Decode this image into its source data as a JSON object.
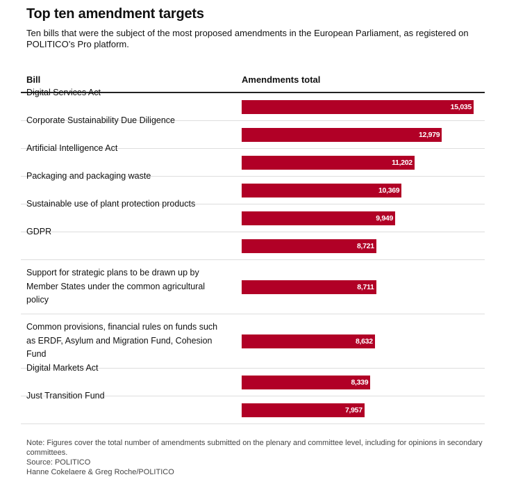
{
  "title": "Top ten amendment targets",
  "subtitle": "Ten bills that were the subject of the most proposed amendments in the European Parliament, as registered on POLITICO’s Pro platform.",
  "columns": {
    "bill": "Bill",
    "amendments": "Amendments total"
  },
  "colors": {
    "bar": "#b10026",
    "bar_label": "#ffffff"
  },
  "chart_data": {
    "type": "bar",
    "orientation": "horizontal",
    "title": "Top ten amendment targets",
    "xlabel": "Amendments total",
    "ylabel": "Bill",
    "grid": false,
    "xlim": [
      0,
      15035
    ],
    "categories": [
      "Digital Services Act",
      "Corporate Sustainability Due Diligence",
      "Artificial Intelligence Act",
      "Packaging and packaging waste",
      "Sustainable use of plant protection products",
      "GDPR",
      "Support for strategic plans to be drawn up by Member States under the common agricultural policy",
      "Common provisions, financial rules on funds such as ERDF, Asylum and Migration Fund, Cohesion Fund",
      "Digital Markets Act",
      "Just Transition Fund"
    ],
    "values": [
      15035,
      12979,
      11202,
      10369,
      9949,
      8721,
      8711,
      8632,
      8339,
      7957
    ],
    "value_labels": [
      "15,035",
      "12,979",
      "11,202",
      "10,369",
      "9,949",
      "8,721",
      "8,711",
      "8,632",
      "8,339",
      "7,957"
    ]
  },
  "footer": {
    "note": "Note: Figures cover the total number of amendments submitted on the plenary and committee level, including for opinions in secondary committees.",
    "source": "Source: POLITICO",
    "credit": "Hanne Cokelaere & Greg Roche/POLITICO"
  }
}
